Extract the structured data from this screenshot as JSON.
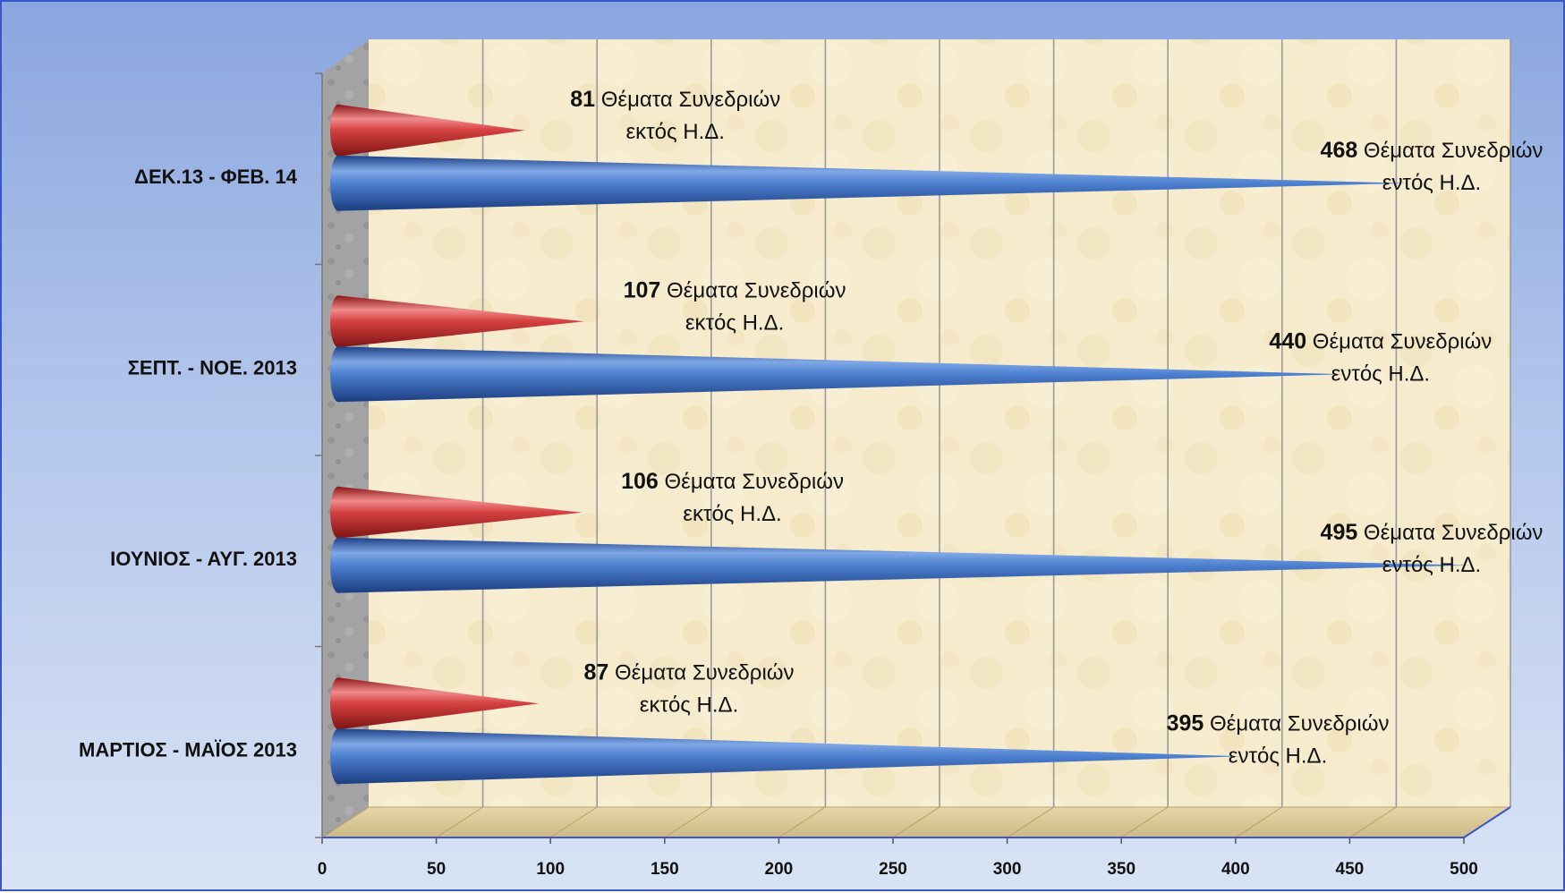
{
  "chart_data": {
    "type": "bar",
    "orientation": "horizontal",
    "style": "3d-cone",
    "categories": [
      "ΜΑΡΤΙΟΣ - ΜΑΪΟΣ 2013",
      "ΙΟΥΝΙΟΣ - ΑΥΓ. 2013",
      "ΣΕΠΤ. - ΝΟΕ. 2013",
      "ΔΕΚ.13 - ΦΕΒ. 14"
    ],
    "series": [
      {
        "color": "#3b6fc4",
        "values": [
          395,
          495,
          440,
          468
        ],
        "label_text": [
          "Θέματα Συνεδριών",
          "Θέματα Συνεδριών",
          "Θέματα Συνεδριών",
          "Θέματα Συνεδριών"
        ],
        "label_sub": [
          "εντός Η.Δ.",
          "εντός Η.Δ.",
          "εντός Η.Δ.",
          "εντός Η.Δ."
        ]
      },
      {
        "color": "#d43a3a",
        "values": [
          87,
          106,
          107,
          81
        ],
        "label_text": [
          "Θέματα Συνεδριών",
          "Θέματα Συνεδριών",
          "Θέματα Συνεδριών",
          "Θέματα Συνεδριών"
        ],
        "label_sub": [
          "εκτός Η.Δ.",
          "εκτός Η.Δ.",
          "εκτός Η.Δ.",
          "εκτός Η.Δ."
        ]
      }
    ],
    "x_ticks": [
      "0",
      "50",
      "100",
      "150",
      "200",
      "250",
      "300",
      "350",
      "400",
      "450",
      "500"
    ],
    "xlim": [
      0,
      500
    ],
    "grid": true,
    "legend": "none"
  }
}
